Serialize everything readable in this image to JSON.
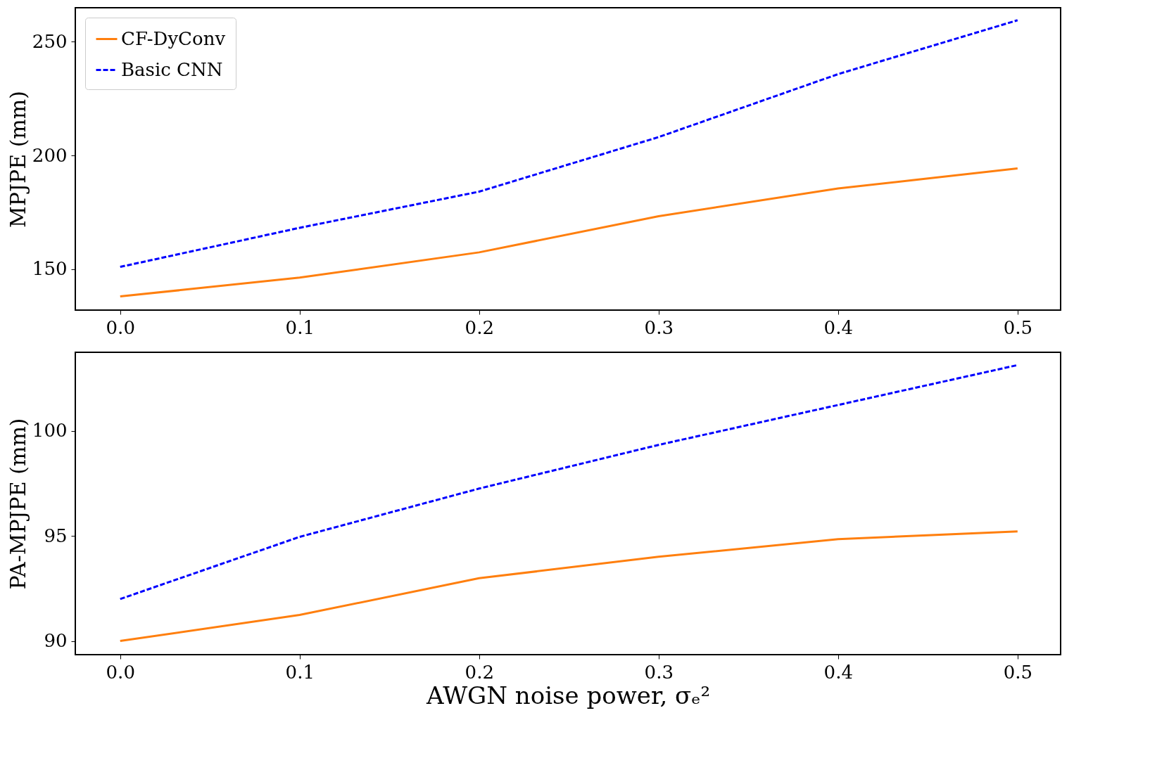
{
  "chart_data": [
    {
      "type": "line",
      "ylabel": "MPJPE (mm)",
      "x": [
        0,
        0.1,
        0.2,
        0.3,
        0.4,
        0.5
      ],
      "xlim": [
        -0.025,
        0.524
      ],
      "xticks": [
        {
          "value": 0,
          "label": "0.0"
        },
        0.1,
        0.2,
        0.3,
        0.4,
        0.5
      ],
      "ylim": [
        132,
        265
      ],
      "yticks": [
        150,
        200,
        250
      ],
      "grid": false,
      "legend": "top left",
      "series": [
        {
          "name": "CF-DyConv",
          "color": "#ff7f0e",
          "line_style": "solid",
          "values": [
            138,
            146.3,
            157.4,
            173.3,
            185.5,
            194.3
          ]
        },
        {
          "name": "Basic CNN",
          "color": "#0000ff",
          "line_style": "dashed",
          "values": [
            151,
            168.2,
            184.1,
            208.1,
            235.8,
            259.5
          ]
        }
      ]
    },
    {
      "type": "line",
      "ylabel": "PA-MPJPE (mm)",
      "xlabel": "AWGN noise power, σₑ²",
      "x": [
        0,
        0.1,
        0.2,
        0.3,
        0.4,
        0.5
      ],
      "xlim": [
        -0.025,
        0.524
      ],
      "xticks": [
        {
          "value": 0,
          "label": "0.0"
        },
        0.1,
        0.2,
        0.3,
        0.4,
        0.5
      ],
      "ylim": [
        89.35,
        103.75
      ],
      "yticks": [
        90,
        95,
        100
      ],
      "grid": false,
      "legend": "top left",
      "series": [
        {
          "name": "CF-DyConv",
          "color": "#ff7f0e",
          "line_style": "solid",
          "values": [
            90.0,
            91.24,
            92.99,
            94.01,
            94.85,
            95.22
          ]
        },
        {
          "name": "Basic CNN",
          "color": "#0000ff",
          "line_style": "dashed",
          "values": [
            92.0,
            94.96,
            97.26,
            99.34,
            101.24,
            103.14
          ]
        }
      ]
    }
  ]
}
